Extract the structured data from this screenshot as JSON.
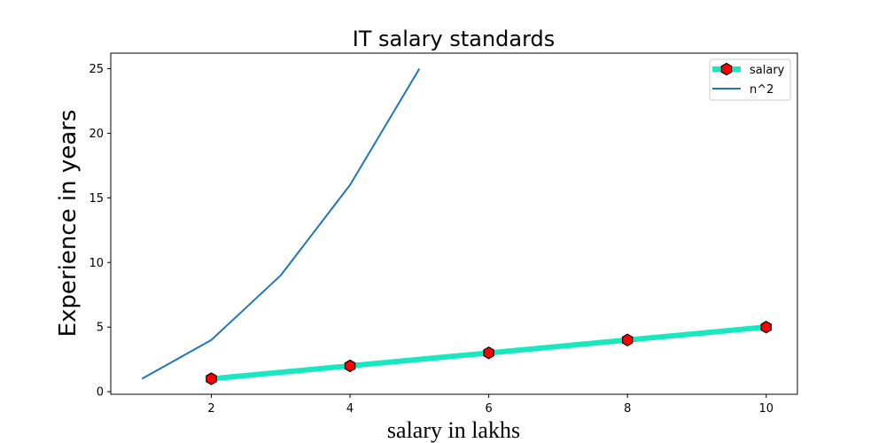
{
  "chart_data": {
    "type": "line",
    "title": "IT salary standards",
    "xlabel": "salary in lakhs",
    "ylabel": "Experience in years",
    "xlim": [
      0.55,
      10.45
    ],
    "ylim": [
      -0.2,
      26.2
    ],
    "xticks": [
      2,
      4,
      6,
      8,
      10
    ],
    "yticks": [
      0,
      5,
      10,
      15,
      20,
      25
    ],
    "legend_position": "top-right",
    "series": [
      {
        "name": "salary",
        "x": [
          2,
          4,
          6,
          8,
          10
        ],
        "y": [
          1,
          2,
          3,
          4,
          5
        ],
        "line_color": "#17e8c0",
        "marker": "hexagon",
        "marker_face": "#ff0000",
        "marker_edge": "#000000"
      },
      {
        "name": "n^2",
        "x": [
          1,
          2,
          3,
          4,
          5
        ],
        "y": [
          1,
          4,
          9,
          16,
          25
        ],
        "line_color": "#1f77b4"
      }
    ]
  }
}
